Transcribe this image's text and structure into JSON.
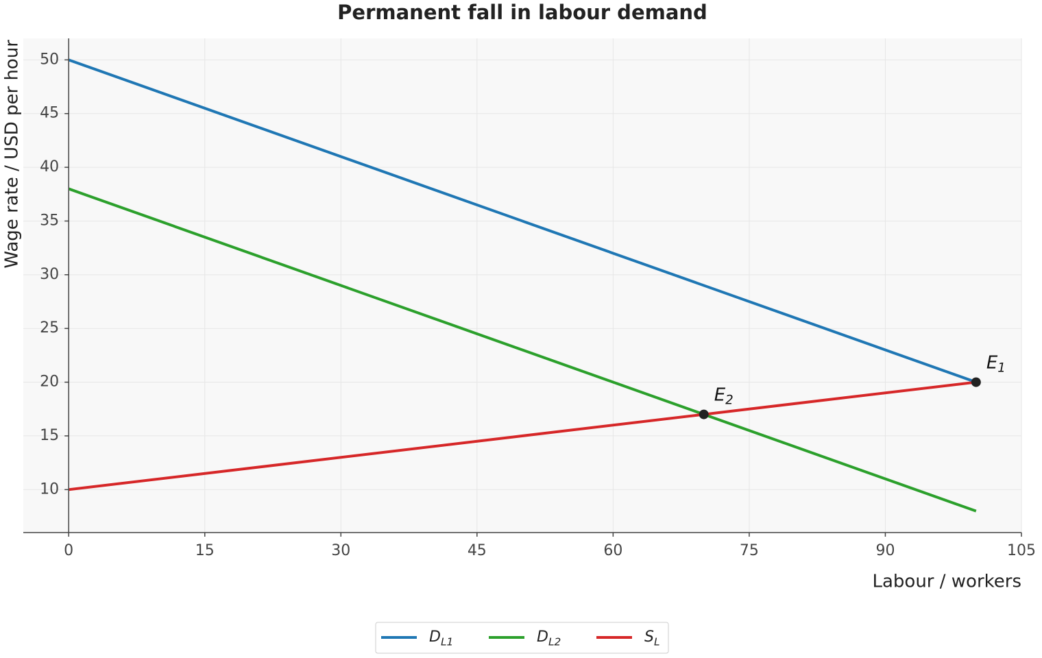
{
  "chart_data": {
    "type": "line",
    "title": "Permanent fall in labour demand",
    "x_label": "Labour / workers",
    "y_label": "Wage rate / USD per hour",
    "x": [
      0,
      100
    ],
    "series": [
      {
        "name": "DL1",
        "color": "#1f77b4",
        "values": [
          50,
          20
        ]
      },
      {
        "name": "DL2",
        "color": "#2ca02c",
        "values": [
          38,
          8
        ]
      },
      {
        "name": "SL",
        "color": "#d62728",
        "values": [
          10,
          20
        ]
      }
    ],
    "points": [
      {
        "label": "E1",
        "x": 100,
        "y": 20
      },
      {
        "label": "E2",
        "x": 70,
        "y": 17
      }
    ],
    "xlim": [
      -5,
      105
    ],
    "ylim": [
      6,
      52
    ],
    "xticks": [
      0,
      15,
      30,
      45,
      60,
      75,
      90,
      105
    ],
    "yticks": [
      10,
      15,
      20,
      25,
      30,
      35,
      40,
      45,
      50
    ],
    "grid": true,
    "legend": "bottom"
  }
}
